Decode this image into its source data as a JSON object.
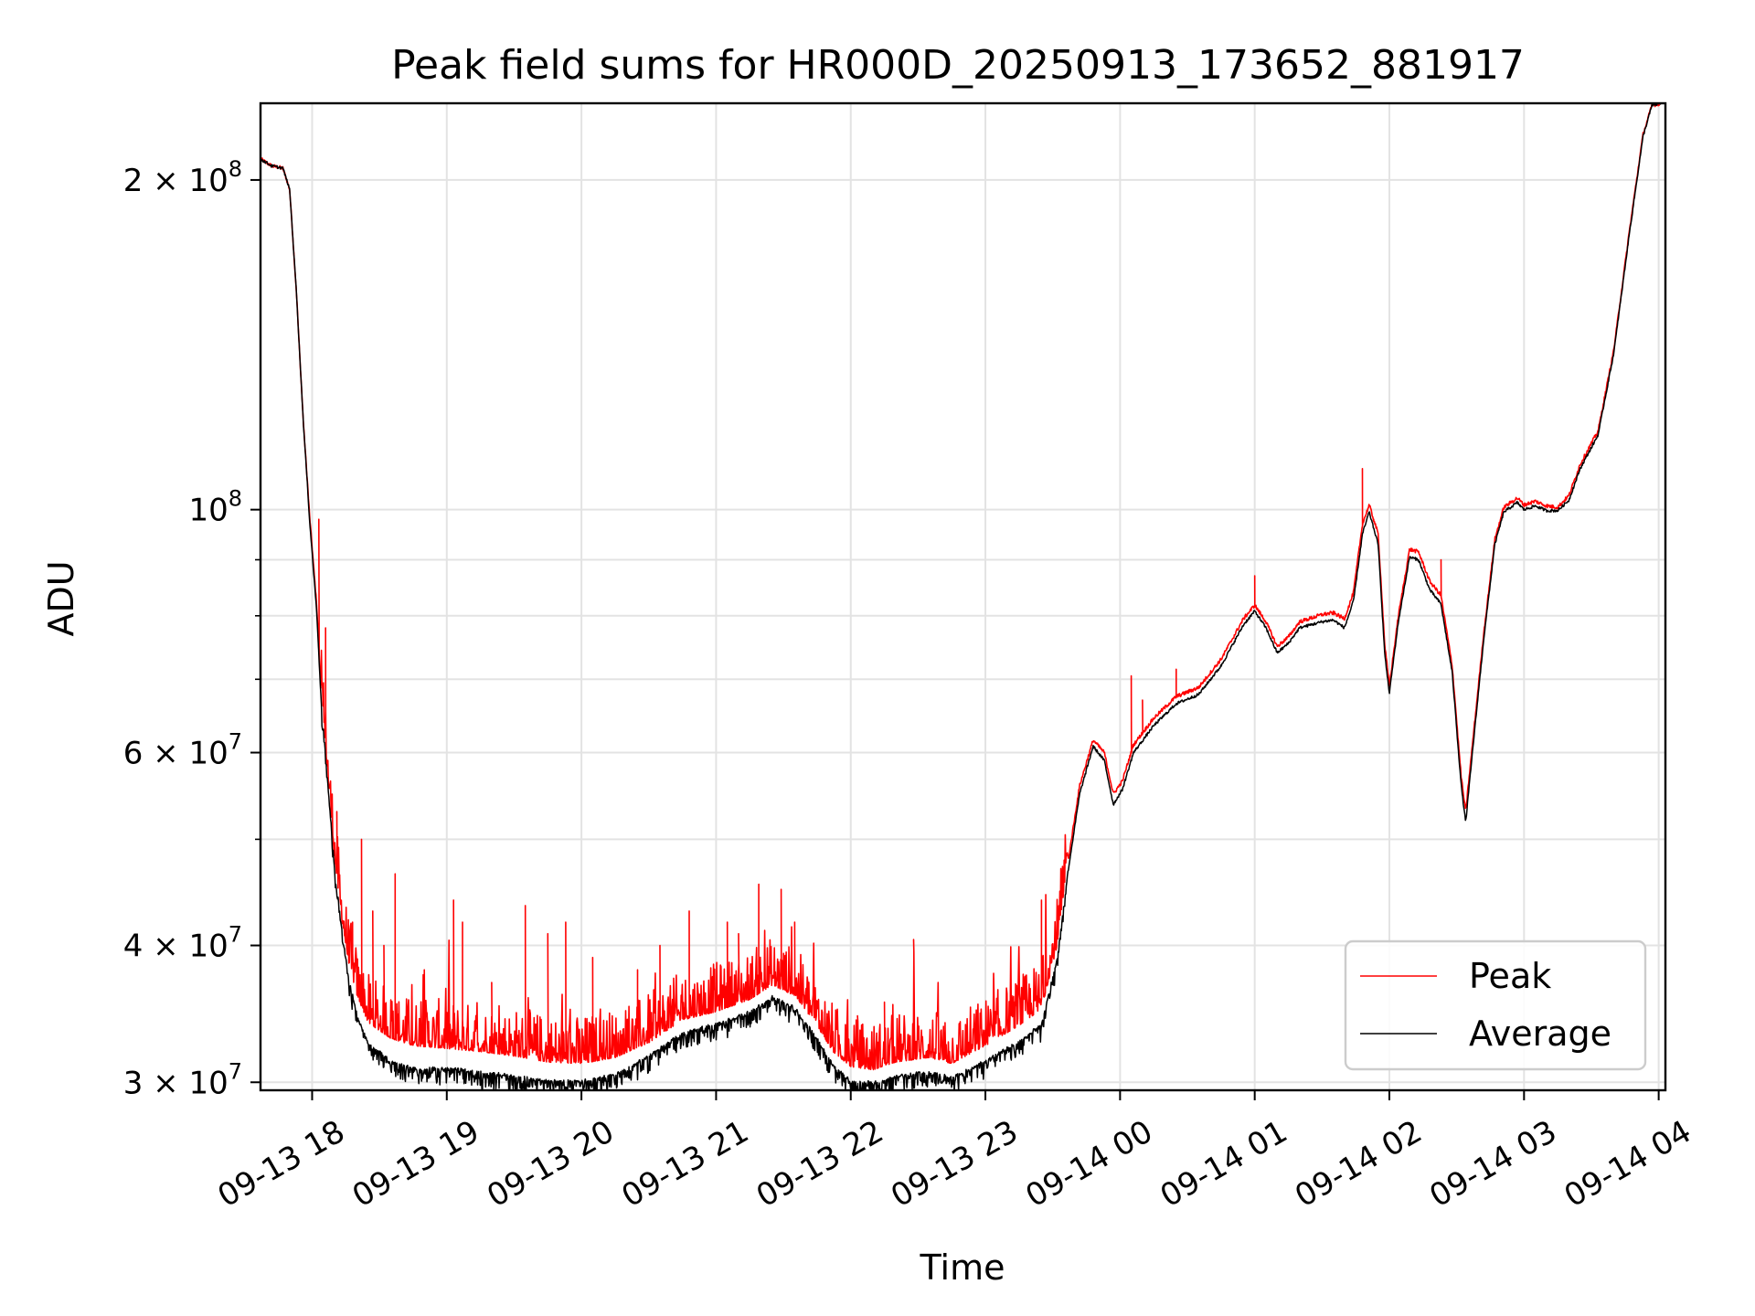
{
  "chart_data": {
    "type": "line",
    "title": "Peak field sums for HR000D_20250913_173652_881917",
    "xlabel": "Time",
    "ylabel": "ADU",
    "yscale": "log",
    "ylim": [
      29500000,
      235000000
    ],
    "xlim": [
      "2025-09-13 17:37",
      "2025-09-14 04:03"
    ],
    "grid": true,
    "legend_position": "bottom-right",
    "x_ticks": [
      {
        "t": "2025-09-13 18:00",
        "label": "09-13 18"
      },
      {
        "t": "2025-09-13 19:00",
        "label": "09-13 19"
      },
      {
        "t": "2025-09-13 20:00",
        "label": "09-13 20"
      },
      {
        "t": "2025-09-13 21:00",
        "label": "09-13 21"
      },
      {
        "t": "2025-09-13 22:00",
        "label": "09-13 22"
      },
      {
        "t": "2025-09-13 23:00",
        "label": "09-13 23"
      },
      {
        "t": "2025-09-14 00:00",
        "label": "09-14 00"
      },
      {
        "t": "2025-09-14 01:00",
        "label": "09-14 01"
      },
      {
        "t": "2025-09-14 02:00",
        "label": "09-14 02"
      },
      {
        "t": "2025-09-14 03:00",
        "label": "09-14 03"
      },
      {
        "t": "2025-09-14 04:00",
        "label": "09-14 04"
      }
    ],
    "y_major_ticks": [
      {
        "value": 30000000,
        "base": "3 × 10",
        "exp": "7"
      },
      {
        "value": 40000000,
        "base": "4 × 10",
        "exp": "7"
      },
      {
        "value": 60000000,
        "base": "6 × 10",
        "exp": "7"
      },
      {
        "value": 100000000,
        "base": "10",
        "exp": "8"
      },
      {
        "value": 200000000,
        "base": "2 × 10",
        "exp": "8"
      }
    ],
    "y_minor_ticks": [
      50000000,
      70000000,
      80000000,
      90000000
    ],
    "series": [
      {
        "name": "Peak",
        "color": "#ff0000",
        "noise": "spiky",
        "points": [
          [
            "2025-09-13 17:37",
            209000000
          ],
          [
            "2025-09-13 17:42",
            206000000
          ],
          [
            "2025-09-13 17:47",
            205000000
          ],
          [
            "2025-09-13 17:50",
            196000000
          ],
          [
            "2025-09-13 17:53",
            158000000
          ],
          [
            "2025-09-13 17:56",
            121000000
          ],
          [
            "2025-09-13 17:59",
            98000000
          ],
          [
            "2025-09-13 18:02",
            82000000
          ],
          [
            "2025-09-13 18:04",
            68000000
          ],
          [
            "2025-09-13 18:07",
            57000000
          ],
          [
            "2025-09-13 18:10",
            48000000
          ],
          [
            "2025-09-13 18:13",
            42500000
          ],
          [
            "2025-09-13 18:16",
            38800000
          ],
          [
            "2025-09-13 18:20",
            36000000
          ],
          [
            "2025-09-13 18:25",
            34000000
          ],
          [
            "2025-09-13 18:35",
            32900000
          ],
          [
            "2025-09-13 18:45",
            32400000
          ],
          [
            "2025-09-13 19:00",
            32200000
          ],
          [
            "2025-09-13 19:15",
            32000000
          ],
          [
            "2025-09-13 19:30",
            31700000
          ],
          [
            "2025-09-13 19:45",
            31300000
          ],
          [
            "2025-09-13 20:00",
            31200000
          ],
          [
            "2025-09-13 20:15",
            31600000
          ],
          [
            "2025-09-13 20:30",
            32600000
          ],
          [
            "2025-09-13 20:45",
            34200000
          ],
          [
            "2025-09-13 21:00",
            34800000
          ],
          [
            "2025-09-13 21:15",
            35700000
          ],
          [
            "2025-09-13 21:25",
            36800000
          ],
          [
            "2025-09-13 21:35",
            36000000
          ],
          [
            "2025-09-13 21:45",
            33800000
          ],
          [
            "2025-09-13 21:52",
            32000000
          ],
          [
            "2025-09-13 22:00",
            31000000
          ],
          [
            "2025-09-13 22:10",
            30800000
          ],
          [
            "2025-09-13 22:20",
            31300000
          ],
          [
            "2025-09-13 22:35",
            31600000
          ],
          [
            "2025-09-13 22:45",
            31200000
          ],
          [
            "2025-09-13 23:00",
            32400000
          ],
          [
            "2025-09-13 23:15",
            33800000
          ],
          [
            "2025-09-13 23:25",
            35000000
          ],
          [
            "2025-09-13 23:32",
            40000000
          ],
          [
            "2025-09-13 23:37",
            48000000
          ],
          [
            "2025-09-13 23:42",
            56000000
          ],
          [
            "2025-09-13 23:48",
            61600000
          ],
          [
            "2025-09-13 23:53",
            60000000
          ],
          [
            "2025-09-13 23:57",
            55000000
          ],
          [
            "2025-09-14 00:01",
            56500000
          ],
          [
            "2025-09-14 00:06",
            61000000
          ],
          [
            "2025-09-14 00:15",
            64500000
          ],
          [
            "2025-09-14 00:25",
            67500000
          ],
          [
            "2025-09-14 00:35",
            68800000
          ],
          [
            "2025-09-14 00:45",
            73000000
          ],
          [
            "2025-09-14 00:55",
            79500000
          ],
          [
            "2025-09-14 01:00",
            81800000
          ],
          [
            "2025-09-14 01:05",
            79000000
          ],
          [
            "2025-09-14 01:10",
            75000000
          ],
          [
            "2025-09-14 01:15",
            76500000
          ],
          [
            "2025-09-14 01:20",
            79000000
          ],
          [
            "2025-09-14 01:30",
            80200000
          ],
          [
            "2025-09-14 01:35",
            80500000
          ],
          [
            "2025-09-14 01:40",
            79500000
          ],
          [
            "2025-09-14 01:44",
            84000000
          ],
          [
            "2025-09-14 01:48",
            97000000
          ],
          [
            "2025-09-14 01:51",
            101000000
          ],
          [
            "2025-09-14 01:55",
            95000000
          ],
          [
            "2025-09-14 01:58",
            75000000
          ],
          [
            "2025-09-14 02:00",
            69000000
          ],
          [
            "2025-09-14 02:04",
            80000000
          ],
          [
            "2025-09-14 02:09",
            92000000
          ],
          [
            "2025-09-14 02:13",
            91500000
          ],
          [
            "2025-09-14 02:18",
            86000000
          ],
          [
            "2025-09-14 02:23",
            83500000
          ],
          [
            "2025-09-14 02:28",
            72000000
          ],
          [
            "2025-09-14 02:32",
            57000000
          ],
          [
            "2025-09-14 02:34",
            53000000
          ],
          [
            "2025-09-14 02:37",
            61000000
          ],
          [
            "2025-09-14 02:42",
            77000000
          ],
          [
            "2025-09-14 02:47",
            94000000
          ],
          [
            "2025-09-14 02:51",
            100500000
          ],
          [
            "2025-09-14 02:57",
            102500000
          ],
          [
            "2025-09-14 03:00",
            101000000
          ],
          [
            "2025-09-14 03:05",
            101800000
          ],
          [
            "2025-09-14 03:10",
            100800000
          ],
          [
            "2025-09-14 03:15",
            100500000
          ],
          [
            "2025-09-14 03:20",
            103000000
          ],
          [
            "2025-09-14 03:25",
            110000000
          ],
          [
            "2025-09-14 03:33",
            118000000
          ],
          [
            "2025-09-14 03:40",
            140000000
          ],
          [
            "2025-09-14 03:47",
            180000000
          ],
          [
            "2025-09-14 03:53",
            220000000
          ],
          [
            "2025-09-14 03:57",
            234000000
          ],
          [
            "2025-09-14 04:01",
            235000000
          ]
        ],
        "spikes": [
          [
            "2025-09-13 18:03",
            98000000
          ],
          [
            "2025-09-13 18:06",
            78000000
          ],
          [
            "2025-09-13 18:11",
            53000000
          ],
          [
            "2025-09-13 18:18",
            42000000
          ],
          [
            "2025-09-13 18:22",
            50000000
          ],
          [
            "2025-09-13 18:27",
            43000000
          ],
          [
            "2025-09-13 18:32",
            40000000
          ],
          [
            "2025-09-13 18:37",
            46500000
          ],
          [
            "2025-09-13 18:50",
            38000000
          ],
          [
            "2025-09-13 19:03",
            44000000
          ],
          [
            "2025-09-13 19:07",
            42000000
          ],
          [
            "2025-09-13 19:20",
            37000000
          ],
          [
            "2025-09-13 19:35",
            43500000
          ],
          [
            "2025-09-13 19:45",
            41000000
          ],
          [
            "2025-09-13 19:53",
            42000000
          ],
          [
            "2025-09-13 20:05",
            39000000
          ],
          [
            "2025-09-13 20:25",
            38000000
          ],
          [
            "2025-09-13 20:35",
            40000000
          ],
          [
            "2025-09-13 20:48",
            43000000
          ],
          [
            "2025-09-13 21:05",
            42000000
          ],
          [
            "2025-09-13 21:10",
            41000000
          ],
          [
            "2025-09-13 21:19",
            45500000
          ],
          [
            "2025-09-13 21:29",
            45000000
          ],
          [
            "2025-09-13 21:35",
            42000000
          ],
          [
            "2025-09-13 22:03",
            34500000
          ],
          [
            "2025-09-13 22:15",
            35500000
          ],
          [
            "2025-09-13 22:28",
            40500000
          ],
          [
            "2025-09-13 22:42",
            34000000
          ],
          [
            "2025-09-13 22:55",
            34500000
          ],
          [
            "2025-09-13 23:13",
            35500000
          ],
          [
            "2025-09-13 23:25",
            44000000
          ],
          [
            "2025-09-14 00:05",
            70500000
          ],
          [
            "2025-09-14 00:10",
            67000000
          ],
          [
            "2025-09-14 00:25",
            71500000
          ],
          [
            "2025-09-14 01:00",
            87000000
          ],
          [
            "2025-09-14 01:48",
            109000000
          ],
          [
            "2025-09-14 01:53",
            98000000
          ],
          [
            "2025-09-14 02:23",
            90000000
          ]
        ]
      },
      {
        "name": "Average",
        "color": "#000000",
        "noise": "dips",
        "points": [
          [
            "2025-09-13 17:37",
            209000000
          ],
          [
            "2025-09-13 17:42",
            206000000
          ],
          [
            "2025-09-13 17:47",
            205000000
          ],
          [
            "2025-09-13 17:50",
            196000000
          ],
          [
            "2025-09-13 17:53",
            158000000
          ],
          [
            "2025-09-13 17:56",
            121000000
          ],
          [
            "2025-09-13 17:59",
            97000000
          ],
          [
            "2025-09-13 18:02",
            81000000
          ],
          [
            "2025-09-13 18:04",
            67000000
          ],
          [
            "2025-09-13 18:07",
            56000000
          ],
          [
            "2025-09-13 18:10",
            47000000
          ],
          [
            "2025-09-13 18:13",
            41500000
          ],
          [
            "2025-09-13 18:16",
            37500000
          ],
          [
            "2025-09-13 18:20",
            34500000
          ],
          [
            "2025-09-13 18:25",
            32500000
          ],
          [
            "2025-09-13 18:35",
            31300000
          ],
          [
            "2025-09-13 18:45",
            30800000
          ],
          [
            "2025-09-13 19:00",
            30800000
          ],
          [
            "2025-09-13 19:15",
            30600000
          ],
          [
            "2025-09-13 19:30",
            30300000
          ],
          [
            "2025-09-13 19:45",
            30000000
          ],
          [
            "2025-09-13 20:00",
            30000000
          ],
          [
            "2025-09-13 20:15",
            30400000
          ],
          [
            "2025-09-13 20:30",
            31600000
          ],
          [
            "2025-09-13 20:45",
            33200000
          ],
          [
            "2025-09-13 21:00",
            33800000
          ],
          [
            "2025-09-13 21:15",
            34700000
          ],
          [
            "2025-09-13 21:25",
            35800000
          ],
          [
            "2025-09-13 21:35",
            35000000
          ],
          [
            "2025-09-13 21:45",
            32800000
          ],
          [
            "2025-09-13 21:52",
            31000000
          ],
          [
            "2025-09-13 22:00",
            30000000
          ],
          [
            "2025-09-13 22:10",
            29900000
          ],
          [
            "2025-09-13 22:20",
            30300000
          ],
          [
            "2025-09-13 22:35",
            30600000
          ],
          [
            "2025-09-13 22:45",
            30200000
          ],
          [
            "2025-09-13 23:00",
            31300000
          ],
          [
            "2025-09-13 23:15",
            32600000
          ],
          [
            "2025-09-13 23:25",
            33800000
          ],
          [
            "2025-09-13 23:32",
            38800000
          ],
          [
            "2025-09-13 23:37",
            47000000
          ],
          [
            "2025-09-13 23:42",
            55000000
          ],
          [
            "2025-09-13 23:48",
            60800000
          ],
          [
            "2025-09-13 23:53",
            59000000
          ],
          [
            "2025-09-13 23:57",
            53800000
          ],
          [
            "2025-09-14 00:01",
            55500000
          ],
          [
            "2025-09-14 00:06",
            60000000
          ],
          [
            "2025-09-14 00:15",
            63500000
          ],
          [
            "2025-09-14 00:25",
            66500000
          ],
          [
            "2025-09-14 00:35",
            67800000
          ],
          [
            "2025-09-14 00:45",
            72000000
          ],
          [
            "2025-09-14 00:55",
            78500000
          ],
          [
            "2025-09-14 01:00",
            80800000
          ],
          [
            "2025-09-14 01:05",
            78000000
          ],
          [
            "2025-09-14 01:10",
            74000000
          ],
          [
            "2025-09-14 01:15",
            75500000
          ],
          [
            "2025-09-14 01:20",
            78000000
          ],
          [
            "2025-09-14 01:30",
            79000000
          ],
          [
            "2025-09-14 01:35",
            79300000
          ],
          [
            "2025-09-14 01:40",
            78000000
          ],
          [
            "2025-09-14 01:44",
            82500000
          ],
          [
            "2025-09-14 01:48",
            95000000
          ],
          [
            "2025-09-14 01:51",
            99500000
          ],
          [
            "2025-09-14 01:55",
            93000000
          ],
          [
            "2025-09-14 01:58",
            73500000
          ],
          [
            "2025-09-14 02:00",
            68000000
          ],
          [
            "2025-09-14 02:04",
            79000000
          ],
          [
            "2025-09-14 02:09",
            90500000
          ],
          [
            "2025-09-14 02:13",
            90000000
          ],
          [
            "2025-09-14 02:18",
            84500000
          ],
          [
            "2025-09-14 02:23",
            82000000
          ],
          [
            "2025-09-14 02:28",
            71000000
          ],
          [
            "2025-09-14 02:32",
            56000000
          ],
          [
            "2025-09-14 02:34",
            51800000
          ],
          [
            "2025-09-14 02:37",
            60000000
          ],
          [
            "2025-09-14 02:42",
            76000000
          ],
          [
            "2025-09-14 02:47",
            93000000
          ],
          [
            "2025-09-14 02:51",
            99500000
          ],
          [
            "2025-09-14 02:57",
            101500000
          ],
          [
            "2025-09-14 03:00",
            100000000
          ],
          [
            "2025-09-14 03:05",
            100800000
          ],
          [
            "2025-09-14 03:10",
            99800000
          ],
          [
            "2025-09-14 03:15",
            99800000
          ],
          [
            "2025-09-14 03:20",
            102000000
          ],
          [
            "2025-09-14 03:25",
            109000000
          ],
          [
            "2025-09-14 03:33",
            117000000
          ],
          [
            "2025-09-14 03:40",
            139000000
          ],
          [
            "2025-09-14 03:47",
            179000000
          ],
          [
            "2025-09-14 03:53",
            219000000
          ],
          [
            "2025-09-14 03:57",
            234000000
          ],
          [
            "2025-09-14 04:01",
            235000000
          ]
        ]
      }
    ]
  }
}
